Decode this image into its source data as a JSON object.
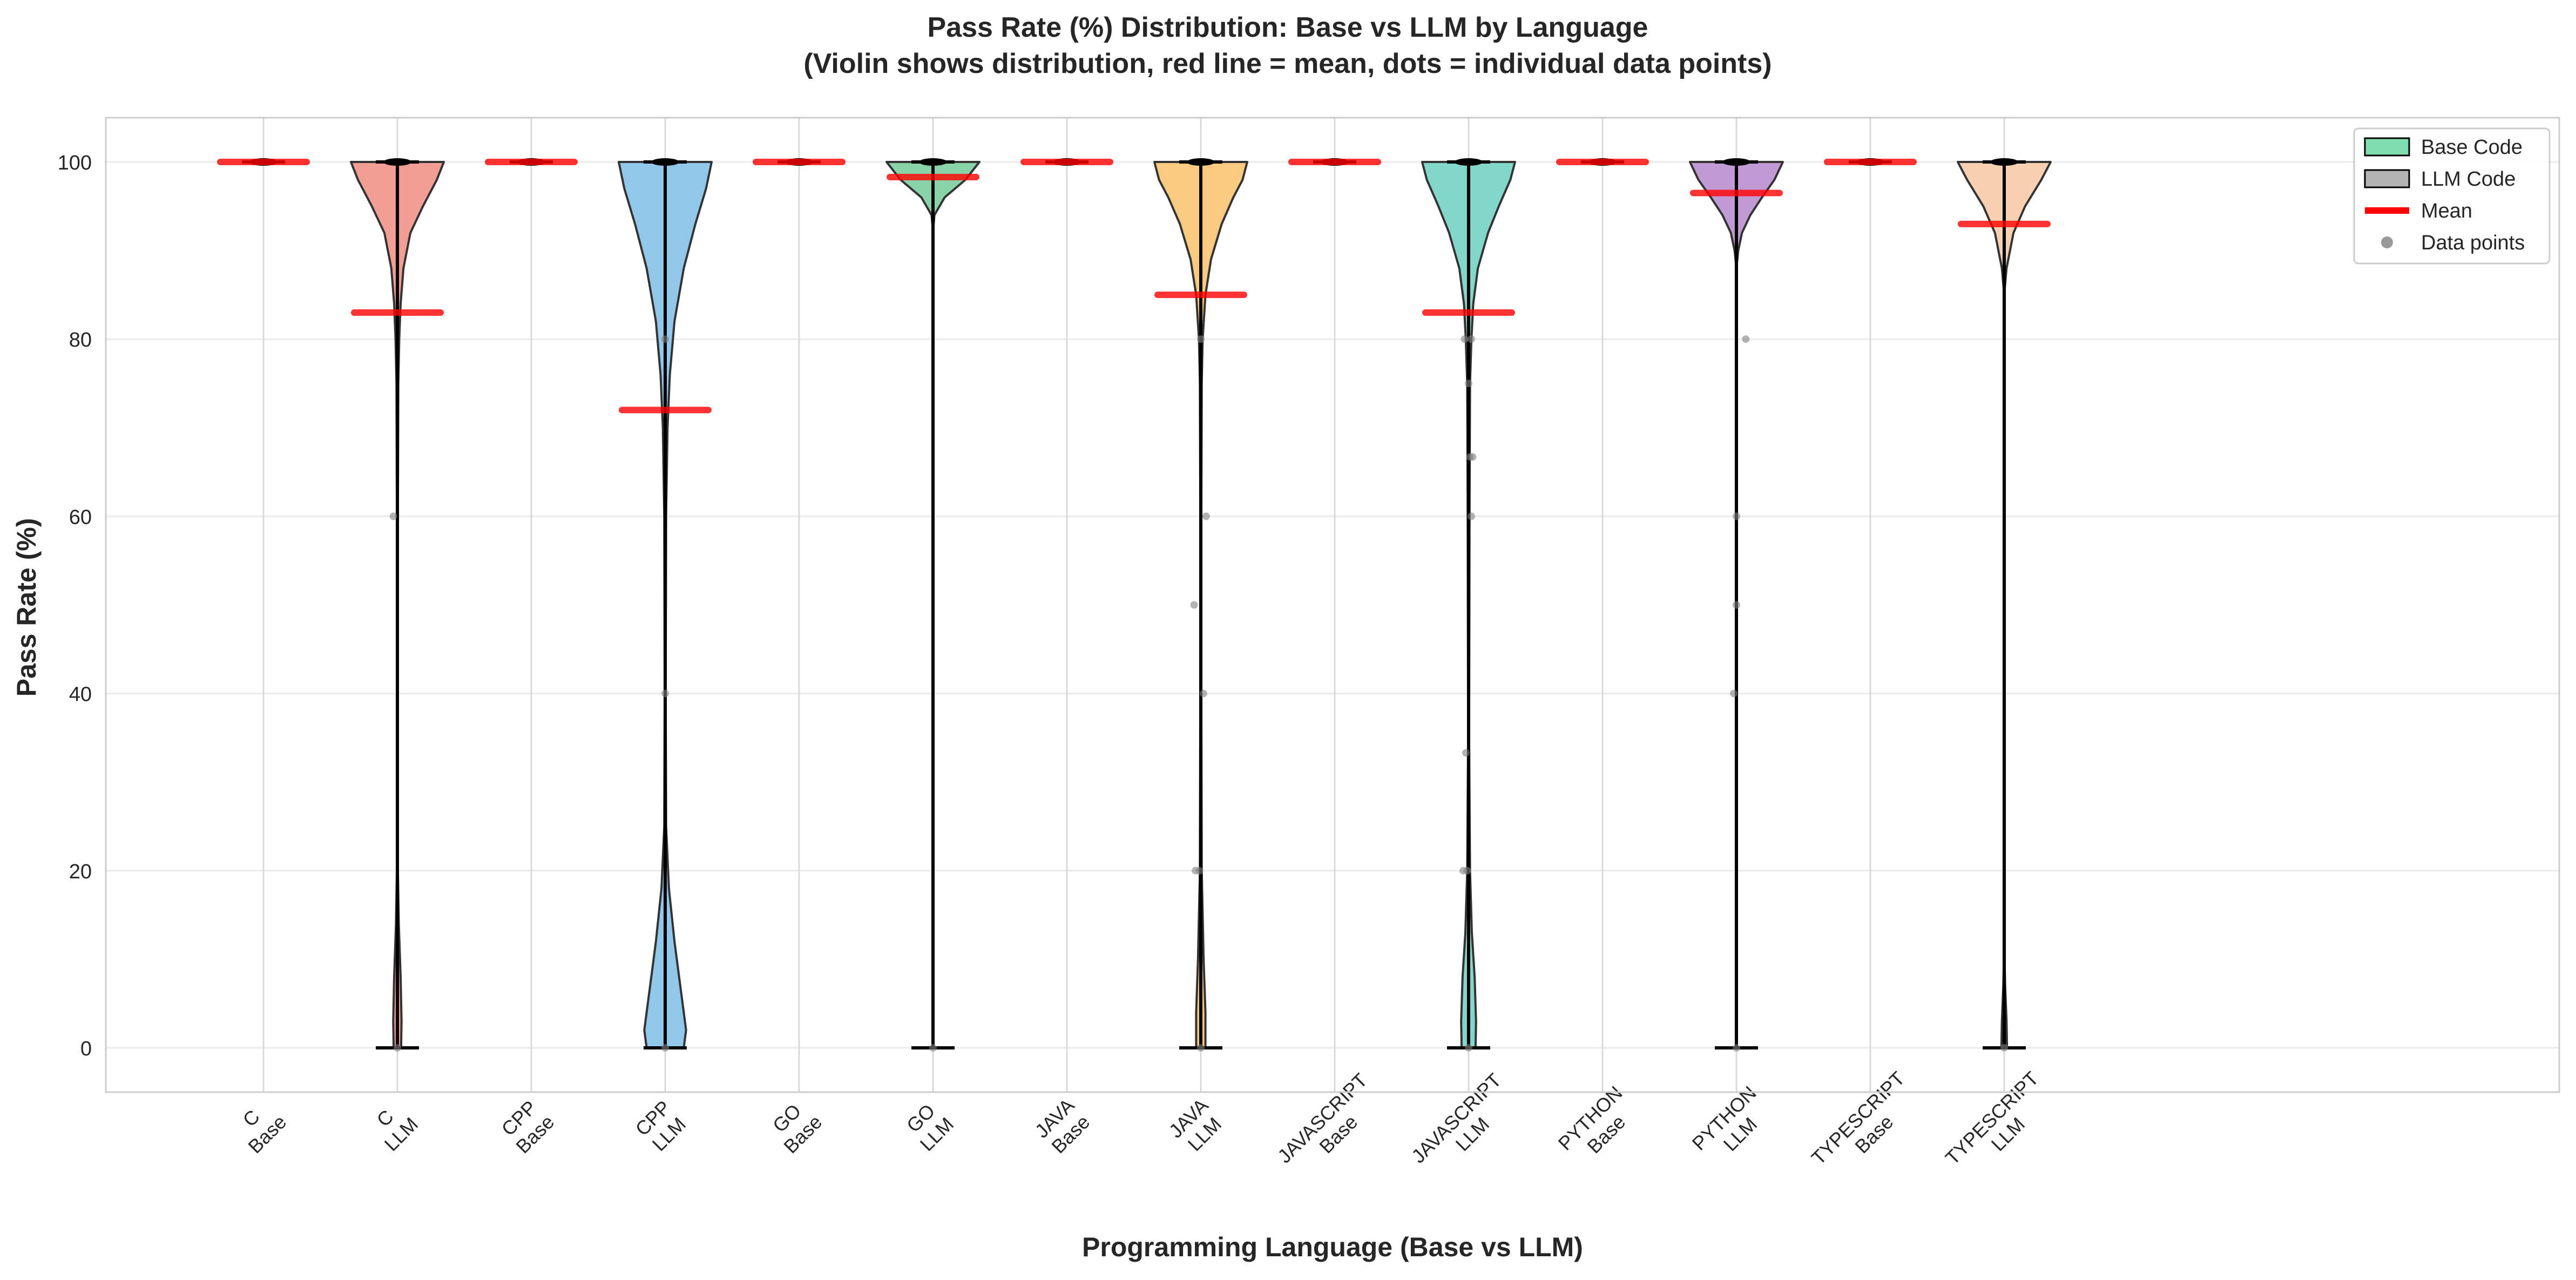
{
  "chart_data": {
    "type": "violin",
    "title": "Pass Rate (%) Distribution: Base vs LLM by Language",
    "subtitle": "(Violin shows distribution, red line = mean, dots = individual data points)",
    "xlabel": "Programming Language (Base vs LLM)",
    "ylabel": "Pass Rate (%)",
    "ylim": [
      -5,
      105
    ],
    "yticks": [
      0,
      20,
      40,
      60,
      80,
      100
    ],
    "grid": true,
    "legend_position": "top-right",
    "legend": [
      {
        "label": "Base Code",
        "kind": "patch",
        "color": "#7fdcad"
      },
      {
        "label": "LLM Code",
        "kind": "patch",
        "color": "#b3b3b3"
      },
      {
        "label": "Mean",
        "kind": "line",
        "color": "#ff0000"
      },
      {
        "label": "Data points",
        "kind": "dot",
        "color": "#999999"
      }
    ],
    "mean_color": "#ff0000",
    "point_color": "#808080",
    "groups": [
      {
        "language": "C",
        "kind": "Base",
        "tick_lines": [
          "C",
          "Base"
        ],
        "color": "#f1948a",
        "min": 100,
        "max": 100,
        "mean": 100,
        "points": [],
        "density": []
      },
      {
        "language": "C",
        "kind": "LLM",
        "tick_lines": [
          "C",
          "LLM"
        ],
        "color": "#f1948a",
        "min": 0,
        "max": 100,
        "mean": 83,
        "points": [
          {
            "x": -0.03,
            "y": 60
          },
          {
            "x": 0,
            "y": 0
          }
        ],
        "density": [
          [
            0,
            0.08
          ],
          [
            3,
            0.09
          ],
          [
            8,
            0.07
          ],
          [
            14,
            0.03
          ],
          [
            20,
            0.01
          ],
          [
            40,
            0.005
          ],
          [
            60,
            0.01
          ],
          [
            75,
            0.02
          ],
          [
            80,
            0.04
          ],
          [
            84,
            0.07
          ],
          [
            88,
            0.13
          ],
          [
            92,
            0.28
          ],
          [
            95,
            0.55
          ],
          [
            98,
            0.85
          ],
          [
            100,
            1.0
          ]
        ]
      },
      {
        "language": "CPP",
        "kind": "Base",
        "tick_lines": [
          "CPP",
          "Base"
        ],
        "color": "#85c1e9",
        "min": 100,
        "max": 100,
        "mean": 100,
        "points": [],
        "density": []
      },
      {
        "language": "CPP",
        "kind": "LLM",
        "tick_lines": [
          "CPP",
          "LLM"
        ],
        "color": "#85c1e9",
        "min": 0,
        "max": 100,
        "mean": 72,
        "points": [
          {
            "x": 0,
            "y": 80
          },
          {
            "x": 0,
            "y": 40
          },
          {
            "x": 0,
            "y": 0
          }
        ],
        "density": [
          [
            0,
            0.4
          ],
          [
            2,
            0.45
          ],
          [
            6,
            0.35
          ],
          [
            12,
            0.2
          ],
          [
            18,
            0.08
          ],
          [
            25,
            0.02
          ],
          [
            40,
            0.01
          ],
          [
            60,
            0.02
          ],
          [
            70,
            0.05
          ],
          [
            76,
            0.1
          ],
          [
            82,
            0.2
          ],
          [
            88,
            0.4
          ],
          [
            93,
            0.65
          ],
          [
            97,
            0.88
          ],
          [
            100,
            1.0
          ]
        ]
      },
      {
        "language": "GO",
        "kind": "Base",
        "tick_lines": [
          "GO",
          "Base"
        ],
        "color": "#7dcea0",
        "min": 100,
        "max": 100,
        "mean": 100,
        "points": [],
        "density": []
      },
      {
        "language": "GO",
        "kind": "LLM",
        "tick_lines": [
          "GO",
          "LLM"
        ],
        "color": "#7dcea0",
        "min": 0,
        "max": 100,
        "mean": 98.3,
        "points": [
          {
            "x": 0,
            "y": 0
          }
        ],
        "density": [
          [
            0,
            0.0
          ],
          [
            92,
            0.0
          ],
          [
            94,
            0.03
          ],
          [
            96,
            0.25
          ],
          [
            98,
            0.7
          ],
          [
            100,
            1.0
          ]
        ]
      },
      {
        "language": "JAVA",
        "kind": "Base",
        "tick_lines": [
          "JAVA",
          "Base"
        ],
        "color": "#f8c471",
        "min": 100,
        "max": 100,
        "mean": 100,
        "points": [],
        "density": []
      },
      {
        "language": "JAVA",
        "kind": "LLM",
        "tick_lines": [
          "JAVA",
          "LLM"
        ],
        "color": "#f8c471",
        "min": 0,
        "max": 100,
        "mean": 85,
        "points": [
          {
            "x": -0.05,
            "y": 50
          },
          {
            "x": 0.04,
            "y": 60
          },
          {
            "x": 0.02,
            "y": 40
          },
          {
            "x": -0.04,
            "y": 20
          },
          {
            "x": -0.01,
            "y": 20
          },
          {
            "x": 0,
            "y": 80
          },
          {
            "x": 0,
            "y": 0
          }
        ],
        "density": [
          [
            0,
            0.1
          ],
          [
            4,
            0.1
          ],
          [
            10,
            0.06
          ],
          [
            20,
            0.02
          ],
          [
            40,
            0.01
          ],
          [
            60,
            0.01
          ],
          [
            75,
            0.02
          ],
          [
            80,
            0.04
          ],
          [
            85,
            0.1
          ],
          [
            89,
            0.22
          ],
          [
            93,
            0.45
          ],
          [
            96,
            0.7
          ],
          [
            98,
            0.9
          ],
          [
            100,
            1.0
          ]
        ]
      },
      {
        "language": "JAVASCRIPT",
        "kind": "Base",
        "tick_lines": [
          "JAVASCRIPT",
          "Base"
        ],
        "color": "#73d3c3",
        "min": 100,
        "max": 100,
        "mean": 100,
        "points": [],
        "density": []
      },
      {
        "language": "JAVASCRIPT",
        "kind": "LLM",
        "tick_lines": [
          "JAVASCRIPT",
          "LLM"
        ],
        "color": "#73d3c3",
        "min": 0,
        "max": 100,
        "mean": 83,
        "points": [
          {
            "x": -0.03,
            "y": 80
          },
          {
            "x": 0.02,
            "y": 80
          },
          {
            "x": 0,
            "y": 75
          },
          {
            "x": 0.01,
            "y": 66.7
          },
          {
            "x": 0.03,
            "y": 66.7
          },
          {
            "x": 0.02,
            "y": 60
          },
          {
            "x": -0.02,
            "y": 33.3
          },
          {
            "x": -0.04,
            "y": 20
          },
          {
            "x": -0.01,
            "y": 20
          },
          {
            "x": 0,
            "y": 0
          }
        ],
        "density": [
          [
            0,
            0.15
          ],
          [
            3,
            0.16
          ],
          [
            8,
            0.13
          ],
          [
            13,
            0.07
          ],
          [
            20,
            0.03
          ],
          [
            35,
            0.01
          ],
          [
            60,
            0.02
          ],
          [
            75,
            0.03
          ],
          [
            80,
            0.06
          ],
          [
            84,
            0.1
          ],
          [
            88,
            0.2
          ],
          [
            92,
            0.42
          ],
          [
            95,
            0.65
          ],
          [
            98,
            0.9
          ],
          [
            100,
            1.0
          ]
        ]
      },
      {
        "language": "PYTHON",
        "kind": "Base",
        "tick_lines": [
          "PYTHON",
          "Base"
        ],
        "color": "#bb8fce",
        "min": 100,
        "max": 100,
        "mean": 100,
        "points": [],
        "density": []
      },
      {
        "language": "PYTHON",
        "kind": "LLM",
        "tick_lines": [
          "PYTHON",
          "LLM"
        ],
        "color": "#bb8fce",
        "min": 0,
        "max": 100,
        "mean": 96.5,
        "points": [
          {
            "x": 0.07,
            "y": 80
          },
          {
            "x": 0,
            "y": 60
          },
          {
            "x": 0,
            "y": 50
          },
          {
            "x": -0.02,
            "y": 40
          },
          {
            "x": 0,
            "y": 0
          }
        ],
        "density": [
          [
            0,
            0.0
          ],
          [
            88,
            0.0
          ],
          [
            90,
            0.04
          ],
          [
            92,
            0.12
          ],
          [
            94,
            0.3
          ],
          [
            96,
            0.55
          ],
          [
            98,
            0.82
          ],
          [
            100,
            1.0
          ]
        ]
      },
      {
        "language": "TYPESCRIPT",
        "kind": "Base",
        "tick_lines": [
          "TYPESCRIPT",
          "Base"
        ],
        "color": "#f5cba7",
        "min": 100,
        "max": 100,
        "mean": 100,
        "points": [],
        "density": []
      },
      {
        "language": "TYPESCRIPT",
        "kind": "LLM",
        "tick_lines": [
          "TYPESCRIPT",
          "LLM"
        ],
        "color": "#f5cba7",
        "min": 0,
        "max": 100,
        "mean": 93,
        "points": [
          {
            "x": 0,
            "y": 0
          }
        ],
        "density": [
          [
            0,
            0.06
          ],
          [
            3,
            0.05
          ],
          [
            7,
            0.02
          ],
          [
            12,
            0.0
          ],
          [
            85,
            0.0
          ],
          [
            88,
            0.05
          ],
          [
            92,
            0.2
          ],
          [
            95,
            0.45
          ],
          [
            98,
            0.8
          ],
          [
            100,
            1.0
          ]
        ]
      }
    ]
  }
}
